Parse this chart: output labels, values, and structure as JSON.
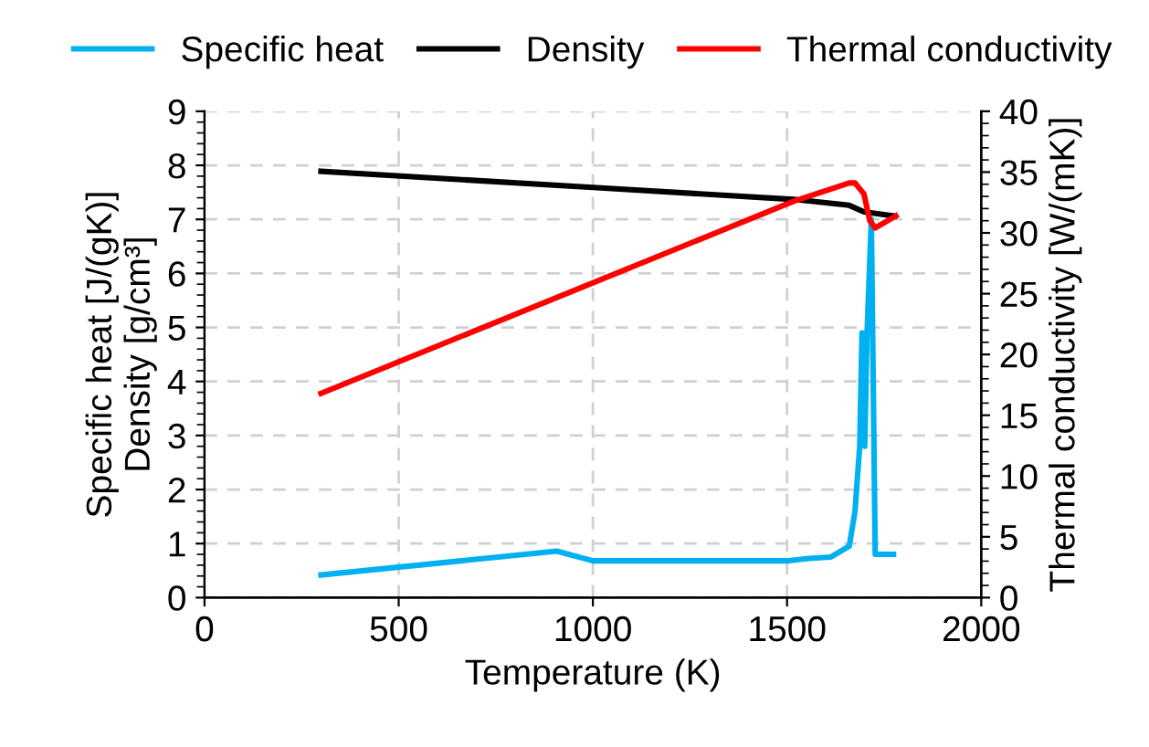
{
  "chart_data": {
    "type": "line",
    "xlabel": "Temperature (K)",
    "ylabel": "Specific heat [J/(gK)]\nDensity [g/cm³]",
    "y2label": "Thermal conductivity [W/(mK)]",
    "xlim": [
      0,
      2000
    ],
    "xticks": [
      0,
      500,
      1000,
      1500,
      2000
    ],
    "ylim": [
      0,
      9
    ],
    "yticks": [
      0,
      1,
      2,
      3,
      4,
      5,
      6,
      7,
      8,
      9
    ],
    "y2lim": [
      0,
      40
    ],
    "y2ticks": [
      0,
      5,
      10,
      15,
      20,
      25,
      30,
      35,
      40
    ],
    "grid": true,
    "legend": "top",
    "line_style": "solid",
    "marker": "none",
    "series": [
      {
        "name": "Specific heat",
        "color": "#00b0f0",
        "x": [
          300,
          907,
          1000,
          1500,
          1550,
          1612,
          1660,
          1675,
          1687,
          1693,
          1700,
          1706,
          1717,
          1727,
          1774
        ],
        "values": [
          0.42,
          0.86,
          0.68,
          0.68,
          0.72,
          0.75,
          0.95,
          1.6,
          2.8,
          4.9,
          2.8,
          4.9,
          7.0,
          0.8,
          0.8
        ]
      },
      {
        "name": "Density",
        "color": "#000000",
        "x": [
          300,
          1000,
          1517,
          1660,
          1698,
          1777
        ],
        "values": [
          7.89,
          7.59,
          7.37,
          7.26,
          7.14,
          7.06
        ]
      },
      {
        "name": "Thermal conductivity",
        "color": "#ff0000",
        "axis": "y2",
        "x": [
          300,
          1517,
          1660,
          1675,
          1698,
          1713,
          1727,
          1780
        ],
        "values": [
          16.8,
          32.6,
          34.1,
          34.1,
          33.2,
          31.0,
          30.4,
          31.4
        ]
      }
    ]
  }
}
